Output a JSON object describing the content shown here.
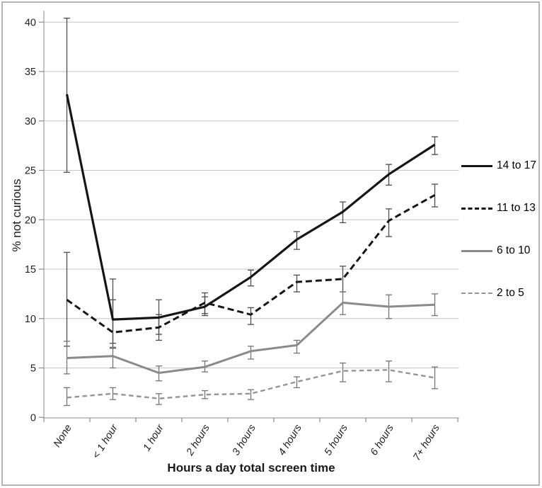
{
  "chart_data": {
    "type": "line",
    "title": "",
    "xlabel": "Hours a day total screen time",
    "ylabel": "% not curious",
    "categories": [
      "None",
      "< 1 hour",
      "1 hour",
      "2 hours",
      "3 hours",
      "4 hours",
      "5 hours",
      "6 hours",
      "7+ hours"
    ],
    "y_ticks": [
      0,
      5,
      10,
      15,
      20,
      25,
      30,
      35,
      40
    ],
    "ylim": [
      0,
      40
    ],
    "grid": true,
    "legend_position": "right",
    "error_bars": true,
    "colors": {
      "black_series": "#161616",
      "gray_series": "#8a8a8a",
      "light_gray_series": "#949494",
      "gridline": "#c6c6c6",
      "axis": "#a3a3a3",
      "tick": "#8c8c8c",
      "text": "#1a1a1a"
    },
    "series": [
      {
        "name": "14 to 17",
        "color": "#161616",
        "err_color": "#4d4d4d",
        "style": "solid",
        "width": 3.2,
        "values": [
          32.7,
          9.9,
          10.1,
          11.2,
          14.2,
          18.0,
          20.8,
          24.6,
          27.6
        ],
        "err_low": [
          24.8,
          7.5,
          8.4,
          10.3,
          13.3,
          17.0,
          19.7,
          23.5,
          26.6
        ],
        "err_high": [
          40.4,
          14.0,
          11.9,
          12.2,
          14.9,
          18.8,
          21.8,
          25.6,
          28.4
        ]
      },
      {
        "name": "11 to 13",
        "color": "#161616",
        "err_color": "#4d4d4d",
        "style": "dashed",
        "width": 3.0,
        "values": [
          11.9,
          8.6,
          9.1,
          11.6,
          10.4,
          13.7,
          14.0,
          19.9,
          22.5
        ],
        "err_low": [
          7.2,
          7.0,
          7.8,
          10.5,
          9.4,
          12.7,
          12.7,
          18.3,
          21.3
        ],
        "err_high": [
          16.7,
          11.9,
          10.4,
          12.6,
          11.1,
          14.4,
          15.3,
          21.1,
          23.6
        ]
      },
      {
        "name": "6 to 10",
        "color": "#8a8a8a",
        "err_color": "#757575",
        "style": "solid",
        "width": 3.0,
        "values": [
          6.0,
          6.2,
          4.5,
          5.1,
          6.7,
          7.3,
          11.6,
          11.2,
          11.4
        ],
        "err_low": [
          4.4,
          5.0,
          3.7,
          4.6,
          5.9,
          6.5,
          10.4,
          10.0,
          10.3
        ],
        "err_high": [
          7.7,
          7.1,
          5.2,
          5.7,
          7.2,
          7.8,
          12.7,
          12.4,
          12.5
        ]
      },
      {
        "name": "2 to 5",
        "color": "#949494",
        "err_color": "#757575",
        "style": "dashed",
        "width": 2.4,
        "values": [
          2.0,
          2.4,
          1.9,
          2.3,
          2.4,
          3.6,
          4.7,
          4.8,
          4.0
        ],
        "err_low": [
          1.2,
          1.8,
          1.3,
          1.9,
          1.8,
          3.0,
          3.6,
          3.6,
          2.9
        ],
        "err_high": [
          3.0,
          3.0,
          2.4,
          2.7,
          2.8,
          4.1,
          5.5,
          5.7,
          5.1
        ]
      }
    ]
  }
}
